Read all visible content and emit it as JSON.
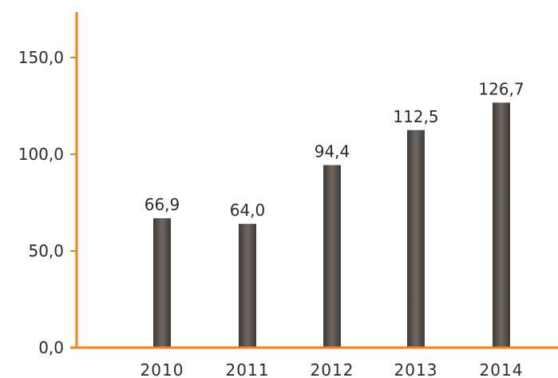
{
  "chart_data": {
    "type": "bar",
    "title": "",
    "xlabel": "",
    "ylabel": "",
    "categories": [
      "2010",
      "2011",
      "2012",
      "2013",
      "2014"
    ],
    "values": [
      66.9,
      64.0,
      94.4,
      112.5,
      126.7
    ],
    "value_labels": [
      "66,9",
      "64,0",
      "94,4",
      "112,5",
      "126,7"
    ],
    "y_ticks": [
      0,
      50,
      100,
      150
    ],
    "y_tick_labels": [
      "0,0",
      "50,0",
      "100,0",
      "150,0"
    ],
    "ylim": [
      0,
      170
    ],
    "grid": false,
    "legend": "none",
    "colors": {
      "axis": "#f0821e",
      "bar_dark": "#3f3a37",
      "bar_light": "#6e6762",
      "text": "#2b2b2b"
    }
  }
}
